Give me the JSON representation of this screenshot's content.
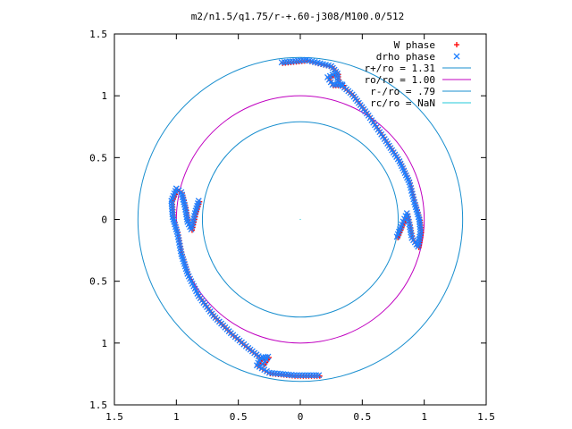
{
  "chart_data": {
    "type": "scatter",
    "title": "m2/n1.5/q1.75/r-+.60-j308/M100.0/512",
    "xlabel": "",
    "ylabel": "",
    "xlim": [
      -1.5,
      1.5
    ],
    "ylim": [
      -1.5,
      1.5
    ],
    "xticks": [
      -1.5,
      -1,
      -0.5,
      0,
      0.5,
      1,
      1.5
    ],
    "yticks": [
      -1.5,
      -1,
      -0.5,
      0,
      0.5,
      1,
      1.5
    ],
    "xtick_labels": [
      "1.5",
      "1",
      "0.5",
      "0",
      "0.5",
      "1",
      "1.5"
    ],
    "ytick_labels": [
      "1.5",
      "1",
      "0.5",
      "0",
      "0.5",
      "1",
      "1.5"
    ],
    "grid": false,
    "legend_position": "top-right",
    "colors": {
      "w_phase": "#ff0000",
      "drho_phase": "#1e7fff",
      "r_plus": "#1a8fcf",
      "r_o": "#c000c0",
      "r_minus": "#1a8fcf",
      "r_c": "#20c8d8"
    },
    "circles": [
      {
        "name": "r+/ro = 1.31",
        "radius": 1.31
      },
      {
        "name": "ro/ro = 1.00",
        "radius": 1.0
      },
      {
        "name": "r-/ro = .79",
        "radius": 0.79
      },
      {
        "name": "rc/ro = NaN",
        "radius": null
      }
    ],
    "series": [
      {
        "name": "W phase",
        "marker": "+"
      },
      {
        "name": "drho phase",
        "marker": "x"
      }
    ],
    "arm_paths": [
      [
        [
          -0.15,
          1.27
        ],
        [
          0.05,
          1.29
        ],
        [
          0.25,
          1.24
        ],
        [
          0.3,
          1.18
        ],
        [
          0.3,
          1.12
        ],
        [
          0.34,
          1.08
        ],
        [
          0.42,
          1.01
        ],
        [
          0.55,
          0.84
        ],
        [
          0.68,
          0.65
        ],
        [
          0.8,
          0.47
        ],
        [
          0.88,
          0.3
        ],
        [
          0.92,
          0.14
        ],
        [
          0.96,
          0.0
        ],
        [
          0.97,
          -0.1
        ],
        [
          0.95,
          -0.22
        ],
        [
          0.9,
          -0.15
        ],
        [
          0.88,
          -0.04
        ],
        [
          0.86,
          0.05
        ],
        [
          0.82,
          -0.04
        ],
        [
          0.78,
          -0.14
        ]
      ],
      [
        [
          -1.0,
          0.25
        ],
        [
          -1.04,
          0.15
        ],
        [
          -1.03,
          0.02
        ],
        [
          -0.99,
          -0.12
        ],
        [
          -0.96,
          -0.28
        ],
        [
          -0.91,
          -0.44
        ],
        [
          -0.82,
          -0.62
        ],
        [
          -0.7,
          -0.78
        ],
        [
          -0.56,
          -0.92
        ],
        [
          -0.42,
          -1.04
        ],
        [
          -0.32,
          -1.12
        ],
        [
          -0.35,
          -1.18
        ],
        [
          -0.25,
          -1.24
        ],
        [
          -0.05,
          -1.26
        ],
        [
          0.15,
          -1.26
        ]
      ],
      [
        [
          -1.0,
          0.25
        ],
        [
          -0.96,
          0.22
        ],
        [
          -0.93,
          0.1
        ],
        [
          -0.91,
          -0.02
        ],
        [
          -0.88,
          -0.08
        ],
        [
          -0.85,
          0.05
        ],
        [
          -0.82,
          0.15
        ]
      ],
      [
        [
          0.28,
          1.18
        ],
        [
          0.22,
          1.15
        ],
        [
          0.26,
          1.09
        ],
        [
          0.34,
          1.09
        ]
      ],
      [
        [
          -0.32,
          -1.12
        ],
        [
          -0.26,
          -1.11
        ],
        [
          -0.3,
          -1.17
        ]
      ]
    ]
  }
}
